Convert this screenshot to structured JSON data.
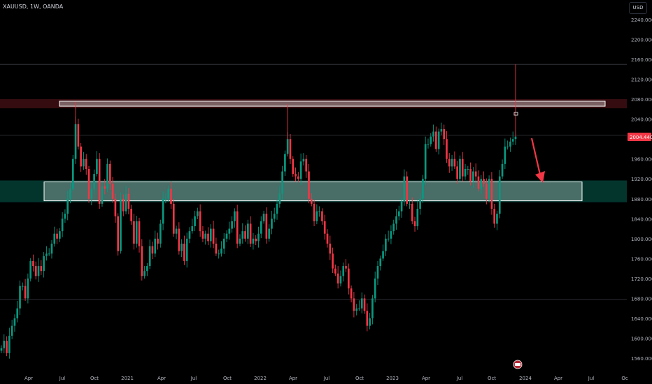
{
  "header": {
    "symbol_label": "XAUUSD, 1W, OANDA",
    "currency_button": "USD"
  },
  "price_axis": {
    "ticks": [
      "2240.000",
      "2200.000",
      "2160.000",
      "2120.000",
      "2080.000",
      "2040.000",
      "1960.000",
      "1920.000",
      "1880.000",
      "1840.000",
      "1800.000",
      "1760.000",
      "1720.000",
      "1680.000",
      "1640.000",
      "1600.000",
      "1560.000"
    ],
    "last_price": "2004.440"
  },
  "time_axis": {
    "ticks": [
      "Apr",
      "Jul",
      "Oct",
      "2021",
      "Apr",
      "Jul",
      "Oct",
      "2022",
      "Apr",
      "Jul",
      "Oct",
      "2023",
      "Apr",
      "Jul",
      "Oct",
      "2024",
      "Apr",
      "Jul",
      "Oc"
    ]
  },
  "colors": {
    "up": "#089981",
    "down": "#f23645",
    "background": "#000000",
    "text": "#b2b5be",
    "zone_border": "#ffffff",
    "arrow": "#f23645",
    "price_badge": "#f23645"
  },
  "chart_data": {
    "type": "candlestick",
    "symbol": "XAUUSD",
    "interval": "1W",
    "y_range": [
      1540,
      2260
    ],
    "annotations": [
      {
        "type": "resistance-zone",
        "low": 2066,
        "high": 2076
      },
      {
        "type": "support-zone",
        "low": 1876,
        "high": 1914
      },
      {
        "type": "horizontal-line",
        "value": 2150
      },
      {
        "type": "horizontal-line",
        "value": 2008
      },
      {
        "type": "horizontal-line",
        "value": 1678
      },
      {
        "type": "arrow-down"
      }
    ],
    "series_close": [
      1580,
      1595,
      1570,
      1605,
      1625,
      1640,
      1660,
      1705,
      1705,
      1680,
      1720,
      1755,
      1745,
      1725,
      1745,
      1735,
      1765,
      1770,
      1770,
      1790,
      1810,
      1800,
      1815,
      1840,
      1850,
      1880,
      1900,
      1960,
      2030,
      1985,
      1945,
      1960,
      1940,
      1880,
      1900,
      1930,
      1960,
      1870,
      1905,
      1900,
      1950,
      1910,
      1880,
      1845,
      1775,
      1880,
      1855,
      1890,
      1860,
      1835,
      1790,
      1835,
      1785,
      1725,
      1735,
      1745,
      1785,
      1770,
      1800,
      1790,
      1830,
      1880,
      1880,
      1900,
      1870,
      1810,
      1820,
      1775,
      1790,
      1755,
      1800,
      1815,
      1825,
      1845,
      1855,
      1815,
      1800,
      1810,
      1795,
      1820,
      1790,
      1770,
      1770,
      1780,
      1800,
      1810,
      1820,
      1835,
      1855,
      1790,
      1800,
      1815,
      1800,
      1830,
      1790,
      1800,
      1795,
      1810,
      1835,
      1850,
      1800,
      1820,
      1840,
      1850,
      1870,
      1890,
      1935,
      1970,
      2000,
      1960,
      1930,
      1925,
      1920,
      1955,
      1960,
      1935,
      1880,
      1870,
      1835,
      1855,
      1855,
      1835,
      1810,
      1790,
      1770,
      1740,
      1730,
      1710,
      1725,
      1745,
      1740,
      1700,
      1680,
      1655,
      1660,
      1660,
      1680,
      1655,
      1625,
      1640,
      1680,
      1720,
      1745,
      1760,
      1775,
      1800,
      1800,
      1815,
      1830,
      1845,
      1855,
      1875,
      1925,
      1870,
      1870,
      1835,
      1825,
      1860,
      1880,
      1920,
      1990,
      1990,
      2005,
      2015,
      1980,
      2015,
      2020,
      2000,
      1960,
      1945,
      1960,
      1945,
      1920,
      1960,
      1925,
      1940,
      1940,
      1915,
      1935,
      1925,
      1900,
      1920,
      1910,
      1880,
      1920,
      1860,
      1830,
      1850,
      1925,
      1950,
      1985,
      1985,
      1995,
      2000,
      2005
    ]
  }
}
